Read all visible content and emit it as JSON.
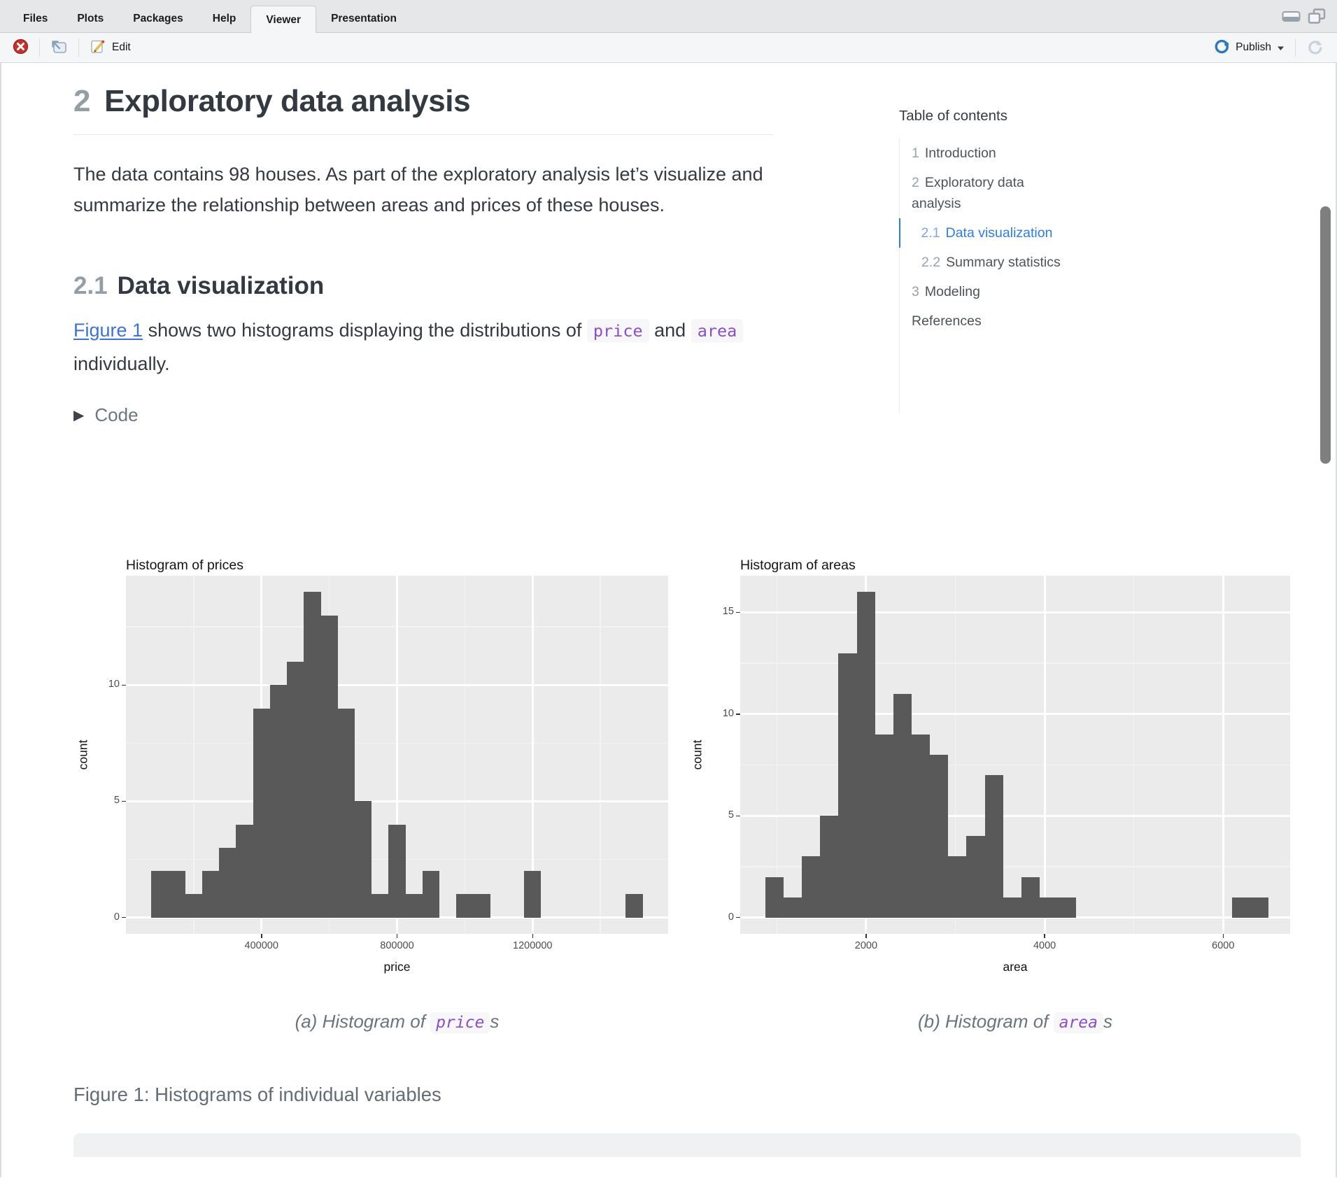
{
  "tabs": {
    "items": [
      "Files",
      "Plots",
      "Packages",
      "Help",
      "Viewer",
      "Presentation"
    ],
    "active": "Viewer"
  },
  "toolbar": {
    "edit_label": "Edit",
    "publish_label": "Publish"
  },
  "toc": {
    "title": "Table of contents",
    "items": [
      {
        "number": "1",
        "label": "Introduction",
        "level": 1,
        "active": false
      },
      {
        "number": "2",
        "label": "Exploratory data analysis",
        "level": 1,
        "active": false
      },
      {
        "number": "2.1",
        "label": "Data visualization",
        "level": 2,
        "active": true
      },
      {
        "number": "2.2",
        "label": "Summary statistics",
        "level": 2,
        "active": false
      },
      {
        "number": "3",
        "label": "Modeling",
        "level": 1,
        "active": false
      },
      {
        "number": "",
        "label": "References",
        "level": 1,
        "active": false
      }
    ]
  },
  "article": {
    "h1_number": "2",
    "h1_title": "Exploratory data analysis",
    "p1": "The data contains 98 houses. As part of the exploratory analysis let’s visualize and summarize the relationship between areas and prices of these houses.",
    "h2_number": "2.1",
    "h2_title": "Data visualization",
    "fig_para": {
      "link_text": "Figure 1",
      "after_link": " shows two histograms displaying the distributions of ",
      "code1": "price",
      "between": " and ",
      "code2": "area",
      "after": " individually."
    },
    "code_toggle_label": "Code",
    "subcaption_a": {
      "prefix": "(a) Histogram of ",
      "code": "price",
      "suffix": "s"
    },
    "subcaption_b": {
      "prefix": "(b) Histogram of ",
      "code": "area",
      "suffix": "s"
    },
    "figure_caption": "Figure 1: Histograms of individual variables"
  },
  "chart_data": [
    {
      "type": "bar",
      "subtype": "histogram",
      "title": "Histogram of prices",
      "xlabel": "price",
      "ylabel": "count",
      "x_domain": [
        0,
        1600000
      ],
      "y_domain": [
        -0.7,
        14.7
      ],
      "xticks": [
        {
          "v": 400000,
          "label": "400000"
        },
        {
          "v": 800000,
          "label": "800000"
        },
        {
          "v": 1200000,
          "label": "1200000"
        }
      ],
      "x_minor": [
        200000,
        600000,
        1000000,
        1400000
      ],
      "yticks": [
        {
          "v": 0,
          "label": "0"
        },
        {
          "v": 5,
          "label": "5"
        },
        {
          "v": 10,
          "label": "10"
        }
      ],
      "y_minor": [
        2.5,
        7.5,
        12.5
      ],
      "grid": true,
      "legend": "none",
      "binwidth": 50000,
      "bins": [
        [
          75000,
          2
        ],
        [
          125000,
          2
        ],
        [
          175000,
          1
        ],
        [
          225000,
          2
        ],
        [
          275000,
          3
        ],
        [
          325000,
          4
        ],
        [
          375000,
          9
        ],
        [
          425000,
          10
        ],
        [
          475000,
          11
        ],
        [
          525000,
          14
        ],
        [
          575000,
          13
        ],
        [
          625000,
          9
        ],
        [
          675000,
          5
        ],
        [
          725000,
          1
        ],
        [
          775000,
          4
        ],
        [
          825000,
          1
        ],
        [
          875000,
          2
        ],
        [
          975000,
          1
        ],
        [
          1025000,
          1
        ],
        [
          1175000,
          2
        ],
        [
          1475000,
          1
        ]
      ],
      "total_count": 98
    },
    {
      "type": "bar",
      "subtype": "histogram",
      "title": "Histogram of areas",
      "xlabel": "area",
      "ylabel": "count",
      "x_domain": [
        590,
        6750
      ],
      "y_domain": [
        -0.8,
        16.8
      ],
      "xticks": [
        {
          "v": 2000,
          "label": "2000"
        },
        {
          "v": 4000,
          "label": "4000"
        },
        {
          "v": 6000,
          "label": "6000"
        }
      ],
      "x_minor": [
        1000,
        3000,
        5000
      ],
      "yticks": [
        {
          "v": 0,
          "label": "0"
        },
        {
          "v": 5,
          "label": "5"
        },
        {
          "v": 10,
          "label": "10"
        },
        {
          "v": 15,
          "label": "15"
        }
      ],
      "y_minor": [
        2.5,
        7.5,
        12.5
      ],
      "grid": true,
      "legend": "none",
      "binwidth": 205,
      "bins": [
        [
          870,
          2
        ],
        [
          1075,
          1
        ],
        [
          1280,
          3
        ],
        [
          1485,
          5
        ],
        [
          1690,
          13
        ],
        [
          1895,
          16
        ],
        [
          2100,
          9
        ],
        [
          2305,
          11
        ],
        [
          2510,
          9
        ],
        [
          2715,
          8
        ],
        [
          2920,
          3
        ],
        [
          3125,
          4
        ],
        [
          3330,
          7
        ],
        [
          3535,
          1
        ],
        [
          3740,
          2
        ],
        [
          3945,
          1
        ],
        [
          4150,
          1
        ],
        [
          6100,
          1
        ],
        [
          6305,
          1
        ]
      ],
      "total_count": 98
    }
  ],
  "icons": [
    "stop-icon",
    "open-in-new-window-icon",
    "edit-pencil-icon",
    "publish-icon",
    "caret-down-icon",
    "refresh-icon",
    "minimize-icon",
    "maximize-icon",
    "triangle-right-icon"
  ],
  "colors": {
    "link_blue": "#3c72d9",
    "toc_active_blue": "#2e7bf0",
    "code_purple": "#8a4fc8",
    "inline_code_bg": "#f7f7f9",
    "bar_fill": "#595959",
    "panel_bg": "#ebebeb",
    "stop_red": "#c5322e",
    "publish_blue": "#2a7ac0",
    "caption_gray": "#6a7380",
    "scrollbar_thumb": "#7f7f7f"
  }
}
